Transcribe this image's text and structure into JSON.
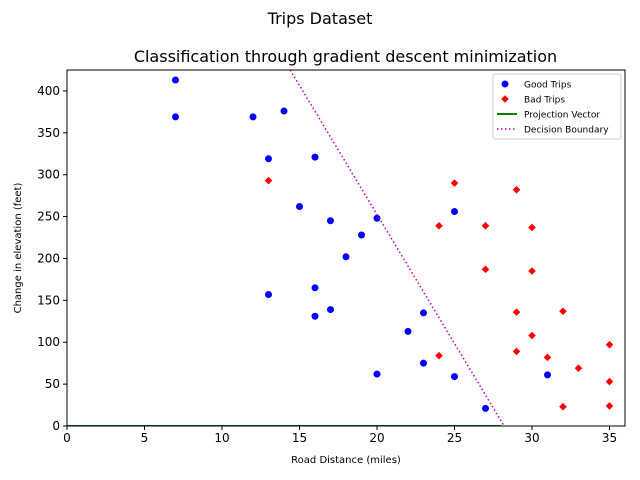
{
  "figure": {
    "suptitle": "Trips Dataset"
  },
  "chart_data": {
    "type": "scatter",
    "title": "Classification through gradient descent minimization",
    "xlabel": "Road Distance (miles)",
    "ylabel": "Change in elevation (feet)",
    "xlim": [
      0,
      36
    ],
    "ylim": [
      0,
      425
    ],
    "xticks": [
      "0",
      "5",
      "10",
      "15",
      "20",
      "25",
      "30",
      "35"
    ],
    "yticks": [
      "0",
      "50",
      "100",
      "150",
      "200",
      "250",
      "300",
      "350",
      "400"
    ],
    "grid": false,
    "legend_position": "top-right",
    "series": [
      {
        "name": "Good Trips",
        "marker": "circle",
        "color": "#0000ff",
        "points": [
          [
            7,
            413
          ],
          [
            7,
            369
          ],
          [
            12,
            369
          ],
          [
            14,
            376
          ],
          [
            13,
            319
          ],
          [
            16,
            321
          ],
          [
            15,
            262
          ],
          [
            17,
            245
          ],
          [
            20,
            248
          ],
          [
            19,
            228
          ],
          [
            18,
            202
          ],
          [
            13,
            157
          ],
          [
            16,
            165
          ],
          [
            16,
            131
          ],
          [
            17,
            139
          ],
          [
            22,
            113
          ],
          [
            23,
            135
          ],
          [
            20,
            62
          ],
          [
            23,
            75
          ],
          [
            25,
            59
          ],
          [
            25,
            256
          ],
          [
            27,
            21
          ],
          [
            31,
            61
          ]
        ]
      },
      {
        "name": "Bad Trips",
        "marker": "diamond",
        "color": "#ff0000",
        "points": [
          [
            13,
            293
          ],
          [
            25,
            290
          ],
          [
            29,
            282
          ],
          [
            24,
            239
          ],
          [
            27,
            239
          ],
          [
            30,
            237
          ],
          [
            27,
            187
          ],
          [
            30,
            185
          ],
          [
            29,
            136
          ],
          [
            32,
            137
          ],
          [
            30,
            108
          ],
          [
            35,
            97
          ],
          [
            29,
            89
          ],
          [
            24,
            84
          ],
          [
            31,
            82
          ],
          [
            33,
            69
          ],
          [
            35,
            53
          ],
          [
            32,
            23
          ],
          [
            35,
            24
          ]
        ]
      },
      {
        "name": "Projection Vector",
        "line_style": "solid",
        "color": "#008000",
        "points": [
          [
            0,
            0
          ],
          [
            28,
            0
          ]
        ]
      },
      {
        "name": "Decision Boundary",
        "line_style": "dotted",
        "color": "#bf00bf",
        "points": [
          [
            14.4,
            425
          ],
          [
            28.2,
            0
          ]
        ]
      }
    ]
  }
}
